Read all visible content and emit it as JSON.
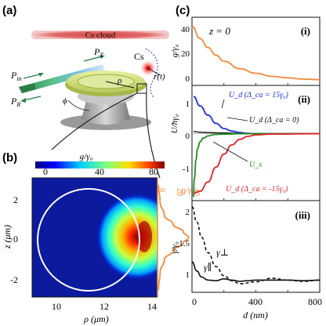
{
  "panel_a": {
    "label": "(a)",
    "cloud_label": "Cs cloud",
    "atom_label": "Cs",
    "traj_label": "r(t)",
    "p_in": "P",
    "p_in_sub": "in",
    "p_r": "P",
    "p_r_sub": "R",
    "p_t": "P",
    "p_t_sub": "T",
    "rho": "ρ",
    "phi": "ϕ"
  },
  "panel_b": {
    "label": "(b)",
    "colorbar_title": "g/γ₀",
    "colorbar_ticks": [
      "0",
      "40",
      "80"
    ],
    "ylabel": "z (μm)",
    "xlabel": "ρ (μm)",
    "y_ticks": [
      "2",
      "0",
      "-2"
    ],
    "x_ticks": [
      "10",
      "12",
      "14"
    ],
    "profile_title": "g/γ₀",
    "profile_ticks": [
      "0",
      "20",
      "40"
    ]
  },
  "panel_c": {
    "label": "(c)",
    "i": {
      "tag": "(i)",
      "annotation": "z = 0",
      "ylabel": "g/γ₀",
      "y_ticks": [
        "40",
        "20",
        "0"
      ]
    },
    "ii": {
      "tag": "(ii)",
      "ylabel": "U/ħγ₀",
      "y_ticks": [
        "1",
        "0",
        "-1"
      ],
      "curve_labels": {
        "ud_pos": "U_d (Δ_ca = 15γ₀)",
        "ud_zero": "U_d (Δ_ca = 0)",
        "us": "U_s",
        "ud_neg": "U_d (Δ_ca = -15γ₀)"
      }
    },
    "iii": {
      "tag": "(iii)",
      "ylabel": "γ/γ₀",
      "y_ticks": [
        "2",
        "1.5",
        "1"
      ],
      "perp_label": "γ⊥",
      "par_label": "γ∥"
    },
    "xlabel": "d (nm)",
    "x_ticks": [
      "0",
      "400",
      "800"
    ]
  },
  "colors": {
    "orange": "#f08a3c",
    "blue": "#1f2fd6",
    "green": "#1e8c1e",
    "red": "#e0262a",
    "cloud": "#e05a5a"
  },
  "chart_data": [
    {
      "type": "line",
      "title": "(i)",
      "xlabel": "d (nm)",
      "ylabel": "g/γ₀",
      "xlim": [
        0,
        800
      ],
      "ylim": [
        -3,
        42
      ],
      "series": [
        {
          "x": [
            0,
            50,
            100,
            150,
            200,
            300,
            400,
            500,
            600,
            700,
            800
          ],
          "y": [
            36,
            28,
            22,
            17,
            13,
            8,
            5,
            3,
            2,
            1.2,
            0.8
          ]
        }
      ]
    },
    {
      "type": "line",
      "title": "(ii)",
      "xlabel": "d (nm)",
      "ylabel": "U/ħγ₀",
      "xlim": [
        0,
        800
      ],
      "ylim": [
        -1.8,
        1.3
      ],
      "series": [
        {
          "name": "U_d (Δ_ca = 15γ₀)",
          "x": [
            10,
            50,
            100,
            150,
            200,
            250,
            300,
            350,
            400,
            500,
            600,
            800
          ],
          "y": [
            1.0,
            0.75,
            0.5,
            0.28,
            0.14,
            0.07,
            0.03,
            0.01,
            0.0,
            0.0,
            0.0,
            0.0
          ]
        },
        {
          "name": "U_d (Δ_ca = 0)",
          "x": [
            10,
            50,
            100,
            200,
            300,
            400,
            500,
            600,
            800
          ],
          "y": [
            0.06,
            0.04,
            0.03,
            0.02,
            0.01,
            0.0,
            0.0,
            0.0,
            0.0
          ]
        },
        {
          "name": "U_s",
          "x": [
            8,
            15,
            25,
            35,
            50,
            70,
            100,
            140,
            200,
            300,
            800
          ],
          "y": [
            -1.7,
            -1.2,
            -0.7,
            -0.4,
            -0.22,
            -0.12,
            -0.06,
            -0.02,
            -0.01,
            0.0,
            0.0
          ]
        },
        {
          "name": "U_d (Δ_ca = -15γ₀)",
          "x": [
            10,
            50,
            100,
            150,
            200,
            250,
            300,
            350,
            400,
            500,
            800
          ],
          "y": [
            -1.6,
            -1.55,
            -1.3,
            -0.9,
            -0.55,
            -0.3,
            -0.15,
            -0.07,
            -0.03,
            -0.01,
            0.0
          ]
        }
      ]
    },
    {
      "type": "line",
      "title": "(iii)",
      "xlabel": "d (nm)",
      "ylabel": "γ/γ₀",
      "xlim": [
        0,
        800
      ],
      "ylim": [
        0.8,
        2.3
      ],
      "series": [
        {
          "name": "γ⊥",
          "x": [
            0,
            30,
            60,
            100,
            150,
            200,
            250,
            300,
            400,
            500,
            600,
            700,
            800
          ],
          "y": [
            2.2,
            1.95,
            1.7,
            1.45,
            1.22,
            1.07,
            0.99,
            0.94,
            0.97,
            1.03,
            1.0,
            0.98,
            1.0
          ]
        },
        {
          "name": "γ∥",
          "x": [
            0,
            30,
            60,
            100,
            150,
            200,
            250,
            300,
            350,
            400,
            500,
            600,
            700,
            800
          ],
          "y": [
            1.3,
            1.15,
            1.05,
            1.0,
            0.99,
            1.02,
            1.0,
            0.98,
            0.99,
            1.0,
            1.0,
            1.0,
            0.99,
            1.0
          ]
        }
      ]
    },
    {
      "type": "line",
      "title": "(b) profile",
      "xlabel": "g/γ₀",
      "ylabel": "z (μm)",
      "xlim": [
        0,
        40
      ],
      "ylim": [
        -2.5,
        2.5
      ],
      "series": [
        {
          "x": [
            1,
            3,
            8,
            18,
            30,
            36,
            30,
            18,
            8,
            3,
            1
          ],
          "y": [
            -2.4,
            -1.6,
            -1.0,
            -0.6,
            -0.25,
            0,
            0.25,
            0.6,
            1.0,
            1.6,
            2.4
          ]
        }
      ]
    }
  ]
}
